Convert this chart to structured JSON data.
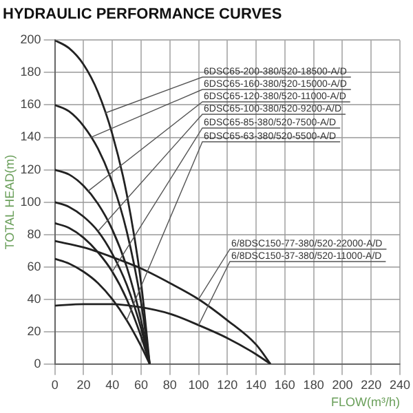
{
  "chart_data": {
    "type": "line",
    "title": "HYDRAULIC PERFORMANCE CURVES",
    "xlabel": "FLOW(m³/h)",
    "ylabel": "TOTAL HEAD(m)",
    "xlim": [
      0,
      240
    ],
    "xticks": [
      0,
      20,
      40,
      60,
      80,
      100,
      120,
      140,
      160,
      180,
      200,
      220,
      240
    ],
    "ylim": [
      0,
      200
    ],
    "yticks": [
      0,
      20,
      40,
      60,
      80,
      100,
      120,
      140,
      160,
      180,
      200
    ],
    "grid": true,
    "legend": false,
    "marker": "none",
    "line_style": "solid",
    "series": [
      {
        "name": "6DSC65-200-380/520-18500-A/D",
        "color": "#222222",
        "x": [
          0,
          10,
          20,
          30,
          40,
          50,
          60,
          66
        ],
        "values": [
          200,
          195,
          185,
          168,
          142,
          105,
          50,
          0
        ]
      },
      {
        "name": "6DSC65-160-380/520-15000-A/D",
        "color": "#222222",
        "x": [
          0,
          10,
          20,
          30,
          40,
          50,
          60,
          66
        ],
        "values": [
          160,
          156,
          147,
          133,
          112,
          82,
          38,
          0
        ]
      },
      {
        "name": "6DSC65-120-380/520-11000-A/D",
        "color": "#222222",
        "x": [
          0,
          10,
          20,
          30,
          40,
          50,
          60,
          66
        ],
        "values": [
          120,
          117,
          110,
          99,
          83,
          60,
          27,
          0
        ]
      },
      {
        "name": "6DSC65-100-380/520-9200-A/D",
        "color": "#222222",
        "x": [
          0,
          10,
          20,
          30,
          40,
          50,
          60,
          66
        ],
        "values": [
          100,
          97,
          91,
          82,
          68,
          49,
          22,
          0
        ]
      },
      {
        "name": "6DSC65-85-380/520-7500-A/D",
        "color": "#222222",
        "x": [
          0,
          10,
          20,
          30,
          40,
          50,
          60,
          66
        ],
        "values": [
          87,
          84,
          78,
          69,
          57,
          40,
          17,
          0
        ]
      },
      {
        "name": "6DSC65-63-380/520-5500-A/D",
        "color": "#222222",
        "x": [
          0,
          10,
          20,
          30,
          40,
          50,
          60,
          66
        ],
        "values": [
          65,
          62,
          57,
          50,
          40,
          27,
          11,
          0
        ]
      },
      {
        "name": "6/8DSC150-77-380/520-22000-A/D",
        "color": "#222222",
        "x": [
          0,
          20,
          40,
          60,
          80,
          100,
          120,
          140,
          150
        ],
        "values": [
          76,
          72,
          66,
          59,
          50,
          40,
          27,
          12,
          0
        ]
      },
      {
        "name": "6/8DSC150-37-380/520-11000-A/D",
        "color": "#222222",
        "x": [
          0,
          20,
          40,
          60,
          80,
          100,
          120,
          140,
          150
        ],
        "values": [
          36,
          37,
          37,
          35,
          31,
          24,
          16,
          6,
          0
        ]
      }
    ]
  }
}
